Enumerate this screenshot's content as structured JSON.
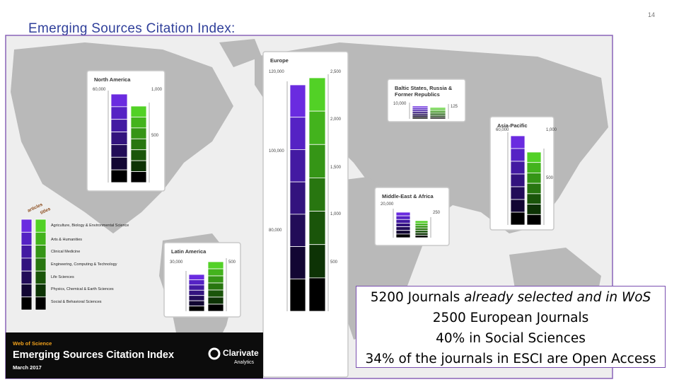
{
  "header": {
    "title": "Emerging Sources Citation Index:",
    "page_number": "14"
  },
  "panels": [
    {
      "title": [
        "North America"
      ],
      "left_labels": [
        "60,000"
      ],
      "right_labels": [
        "1,000",
        "500"
      ]
    },
    {
      "title": [
        "Europe"
      ],
      "left_labels": [
        "120,000",
        "100,000",
        "80,000"
      ],
      "right_labels": [
        "2,500",
        "2,000",
        "1,500",
        "1,000",
        "500"
      ]
    },
    {
      "title": [
        "Baltic States, Russia &",
        "Former Republics"
      ],
      "left_labels": [
        "10,000"
      ],
      "right_labels": [
        "125"
      ]
    },
    {
      "title": [
        "Asia-Pacific"
      ],
      "left_labels": [
        "60,000"
      ],
      "right_labels": [
        "1,000",
        "500"
      ]
    },
    {
      "title": [
        "Middle-East & Africa"
      ],
      "left_labels": [
        "20,000"
      ],
      "right_labels": [
        "250"
      ]
    },
    {
      "title": [
        "Latin America"
      ],
      "left_labels": [
        "30,000"
      ],
      "right_labels": [
        "500"
      ]
    }
  ],
  "legend": {
    "headings": [
      "articles",
      "titles"
    ],
    "items": [
      "Agriculture, Biology & Environmental Science",
      "Arts & Humanities",
      "Clinical Medicine",
      "Engineering, Computing & Technology",
      "Life Sciences",
      "Physics, Chemical & Earth Sciences",
      "Social & Behavioral Sciences"
    ]
  },
  "banner": {
    "brand": "Web of Science",
    "title": "Emerging Sources Citation Index",
    "date": "March 2017",
    "logo": [
      "Clarivate",
      "Analytics"
    ]
  },
  "callout": {
    "first_line": [
      "5200 Journals",
      "already selected and in WoS"
    ],
    "lines": [
      "2500 European Journals",
      "40% in Social Sciences",
      "34% of the journals in ESCI are Open Access"
    ]
  }
}
